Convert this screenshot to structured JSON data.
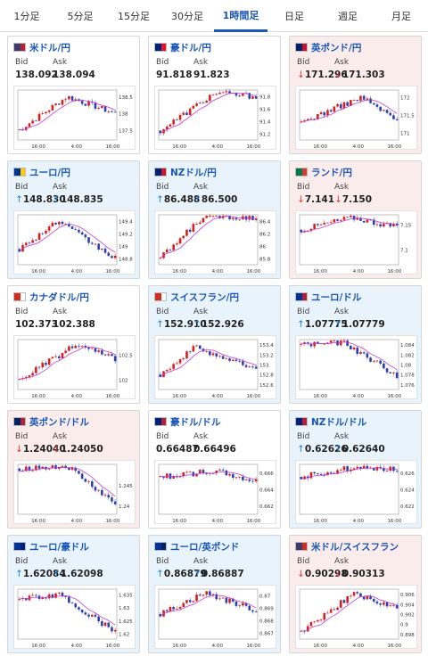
{
  "tabs": [
    {
      "label": "1分足",
      "active": false
    },
    {
      "label": "5分足",
      "active": false
    },
    {
      "label": "15分足",
      "active": false
    },
    {
      "label": "30分足",
      "active": false
    },
    {
      "label": "1時間足",
      "active": true
    },
    {
      "label": "日足",
      "active": false
    },
    {
      "label": "週足",
      "active": false
    },
    {
      "label": "月足",
      "active": false
    }
  ],
  "labels": {
    "bid": "Bid",
    "ask": "Ask"
  },
  "cards": [
    {
      "pair": "米ドル/円",
      "trend": "neutral",
      "flag": [
        "#3c3b6e",
        "#b22234"
      ],
      "bid": "138.092",
      "ask": "138.094",
      "chart_data": {
        "type": "candlestick",
        "x_ticks": [
          "16:00",
          "4:00",
          "16:00"
        ],
        "y_ticks": [
          "138.5",
          "138",
          "137.5"
        ],
        "ylim": [
          137.2,
          138.7
        ],
        "start": 137.5,
        "end": 138.0,
        "peak": 138.5
      }
    },
    {
      "pair": "豪ドル/円",
      "trend": "neutral",
      "flag": [
        "#00247d",
        "#e8112d"
      ],
      "bid": "91.818",
      "ask": "91.823",
      "chart_data": {
        "type": "candlestick",
        "x_ticks": [
          "16:00",
          "4:00",
          "16:00"
        ],
        "y_ticks": [
          "91.8",
          "91.6",
          "91.4",
          "91.2"
        ],
        "ylim": [
          91.1,
          91.9
        ],
        "start": 91.25,
        "end": 91.8,
        "peak": 91.85
      }
    },
    {
      "pair": "英ポンド/円",
      "trend": "down",
      "flag": [
        "#012169",
        "#c8102e"
      ],
      "bid": "171.296",
      "ask": "171.303",
      "chart_data": {
        "type": "candlestick",
        "x_ticks": [
          "16:00",
          "4:00",
          "16:00"
        ],
        "y_ticks": [
          "172",
          "171.5",
          "171"
        ],
        "ylim": [
          170.8,
          172.2
        ],
        "start": 171.3,
        "end": 171.35,
        "peak": 172.0
      }
    },
    {
      "pair": "ユーロ/円",
      "trend": "up",
      "flag": [
        "#003399",
        "#ffcc00"
      ],
      "bid": "148.830",
      "ask": "148.835",
      "chart_data": {
        "type": "candlestick",
        "x_ticks": [
          "16:00",
          "4:00",
          "16:00"
        ],
        "y_ticks": [
          "149.4",
          "149.2",
          "149",
          "148.8"
        ],
        "ylim": [
          148.7,
          149.5
        ],
        "start": 148.95,
        "end": 148.8,
        "peak": 149.4
      }
    },
    {
      "pair": "NZドル/円",
      "trend": "up",
      "flag": [
        "#00247d",
        "#cc142b"
      ],
      "bid": "86.488",
      "ask": "86.500",
      "chart_data": {
        "type": "candlestick",
        "x_ticks": [
          "16:00",
          "4:00",
          "16:00"
        ],
        "y_ticks": [
          "86.4",
          "86.2",
          "86",
          "85.8"
        ],
        "ylim": [
          85.7,
          86.5
        ],
        "start": 85.8,
        "end": 86.45,
        "peak": 86.5
      }
    },
    {
      "pair": "ランド/円",
      "trend": "down",
      "flag": [
        "#007a4d",
        "#de3831"
      ],
      "bid": "7.141",
      "ask": "7.150",
      "chart_data": {
        "type": "candlestick",
        "x_ticks": [
          "16:00",
          "4:00",
          "16:00"
        ],
        "y_ticks": [
          "7.15",
          "7.1"
        ],
        "ylim": [
          7.07,
          7.17
        ],
        "start": 7.14,
        "end": 7.145,
        "peak": 7.165
      }
    },
    {
      "pair": "カナダドル/円",
      "trend": "neutral",
      "flag": [
        "#d52b1e",
        "#ffffff"
      ],
      "bid": "102.373",
      "ask": "102.388",
      "chart_data": {
        "type": "candlestick",
        "x_ticks": [
          "16:00",
          "4:00",
          "16:00"
        ],
        "y_ticks": [
          "102.5",
          "102"
        ],
        "ylim": [
          101.8,
          102.8
        ],
        "start": 102.0,
        "end": 102.4,
        "peak": 102.7
      }
    },
    {
      "pair": "スイスフラン/円",
      "trend": "up",
      "flag": [
        "#d52b1e",
        "#ffffff"
      ],
      "bid": "152.910",
      "ask": "152.926",
      "chart_data": {
        "type": "candlestick",
        "x_ticks": [
          "16:00",
          "4:00",
          "16:00"
        ],
        "y_ticks": [
          "153.4",
          "153.2",
          "153",
          "152.8",
          "152.6"
        ],
        "ylim": [
          152.5,
          153.5
        ],
        "start": 152.8,
        "end": 152.9,
        "peak": 153.35
      }
    },
    {
      "pair": "ユーロ/ドル",
      "trend": "up",
      "flag": [
        "#003399",
        "#b22234"
      ],
      "bid": "1.07775",
      "ask": "1.07779",
      "chart_data": {
        "type": "candlestick",
        "x_ticks": [
          "16:00",
          "4:00",
          "16:00"
        ],
        "y_ticks": [
          "1.084",
          "1.082",
          "1.08",
          "1.078",
          "1.076"
        ],
        "ylim": [
          1.075,
          1.085
        ],
        "start": 1.084,
        "end": 1.0778,
        "peak": 1.0845
      }
    },
    {
      "pair": "英ポンド/ドル",
      "trend": "down",
      "flag": [
        "#012169",
        "#b22234"
      ],
      "bid": "1.24040",
      "ask": "1.24050",
      "chart_data": {
        "type": "candlestick",
        "x_ticks": [
          "16:00",
          "4:00",
          "16:00"
        ],
        "y_ticks": [
          "1.245",
          "1.24"
        ],
        "ylim": [
          1.238,
          1.25
        ],
        "start": 1.249,
        "end": 1.2404,
        "peak": 1.2495
      }
    },
    {
      "pair": "豪ドル/ドル",
      "trend": "neutral",
      "flag": [
        "#00247d",
        "#b22234"
      ],
      "bid": "0.66487",
      "ask": "0.66496",
      "chart_data": {
        "type": "candlestick",
        "x_ticks": [
          "16:00",
          "4:00",
          "16:00"
        ],
        "y_ticks": [
          "0.666",
          "0.664",
          "0.662"
        ],
        "ylim": [
          0.661,
          0.667
        ],
        "start": 0.6655,
        "end": 0.6649,
        "peak": 0.6662
      }
    },
    {
      "pair": "NZドル/ドル",
      "trend": "up",
      "flag": [
        "#00247d",
        "#b22234"
      ],
      "bid": "0.62626",
      "ask": "0.62640",
      "chart_data": {
        "type": "candlestick",
        "x_ticks": [
          "16:00",
          "4:00",
          "16:00"
        ],
        "y_ticks": [
          "0.626",
          "0.624",
          "0.622"
        ],
        "ylim": [
          0.621,
          0.627
        ],
        "start": 0.6255,
        "end": 0.6263,
        "peak": 0.6268
      }
    },
    {
      "pair": "ユーロ/豪ドル",
      "trend": "up",
      "flag": [
        "#003399",
        "#00247d"
      ],
      "bid": "1.62084",
      "ask": "1.62098",
      "chart_data": {
        "type": "candlestick",
        "x_ticks": [
          "16:00",
          "4:00",
          "16:00"
        ],
        "y_ticks": [
          "1.635",
          "1.63",
          "1.625",
          "1.62"
        ],
        "ylim": [
          1.618,
          1.637
        ],
        "start": 1.633,
        "end": 1.6208,
        "peak": 1.635
      }
    },
    {
      "pair": "ユーロ/英ポンド",
      "trend": "up",
      "flag": [
        "#003399",
        "#012169"
      ],
      "bid": "0.86879",
      "ask": "0.86887",
      "chart_data": {
        "type": "candlestick",
        "x_ticks": [
          "16:00",
          "4:00",
          "16:00"
        ],
        "y_ticks": [
          "0.87",
          "0.869",
          "0.868",
          "0.867"
        ],
        "ylim": [
          0.8665,
          0.8705
        ],
        "start": 0.8685,
        "end": 0.8688,
        "peak": 0.8702
      }
    },
    {
      "pair": "米ドル/スイスフラン",
      "trend": "down",
      "flag": [
        "#3c3b6e",
        "#d52b1e"
      ],
      "bid": "0.90298",
      "ask": "0.90313",
      "chart_data": {
        "type": "candlestick",
        "x_ticks": [
          "16:00",
          "4:00",
          "16:00"
        ],
        "y_ticks": [
          "0.906",
          "0.904",
          "0.902",
          "0.9",
          "0.898"
        ],
        "ylim": [
          0.897,
          0.907
        ],
        "start": 0.8985,
        "end": 0.903,
        "peak": 0.906
      }
    }
  ]
}
